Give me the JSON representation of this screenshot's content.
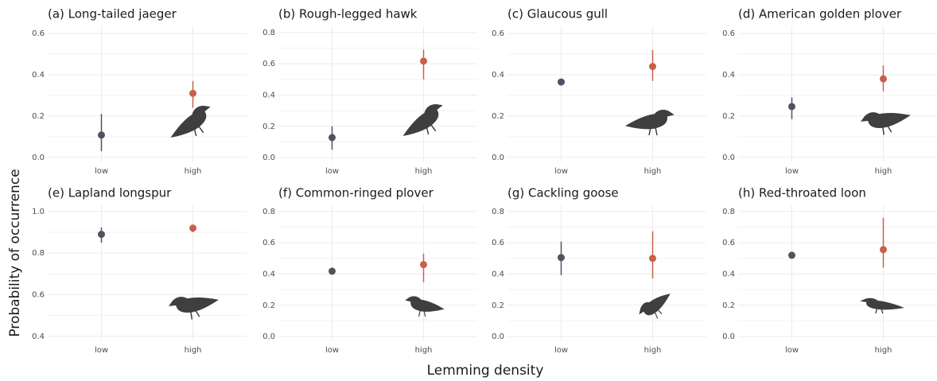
{
  "ylabel": "Probability of occurrence",
  "xlabel": "Lemming density",
  "chart_data": [
    {
      "type": "point",
      "title": "(a) Long-tailed jaeger",
      "categories": [
        "low",
        "high"
      ],
      "values": [
        0.108,
        0.31
      ],
      "lower": [
        0.03,
        0.24
      ],
      "upper": [
        0.21,
        0.37
      ],
      "colors": [
        "#4d5361",
        "#c8604a"
      ],
      "ylim": [
        -0.02,
        0.635
      ],
      "yticks": [
        {
          "value": 0,
          "label": "0.0"
        },
        0.2,
        0.4,
        0.6
      ],
      "grid": true
    },
    {
      "type": "point",
      "title": "(b) Rough-legged hawk",
      "categories": [
        "low",
        "high"
      ],
      "values": [
        0.128,
        0.617
      ],
      "lower": [
        0.05,
        0.5
      ],
      "upper": [
        0.2,
        0.69
      ],
      "colors": [
        "#4d5361",
        "#c8604a"
      ],
      "ylim": [
        -0.025,
        0.84
      ],
      "yticks": [
        {
          "value": 0,
          "label": "0.0"
        },
        0.2,
        0.4,
        0.6,
        0.8
      ],
      "grid": true
    },
    {
      "type": "point",
      "title": "(c) Glaucous gull",
      "categories": [
        "low",
        "high"
      ],
      "values": [
        0.365,
        0.44
      ],
      "lower": [
        0.36,
        0.37
      ],
      "upper": [
        0.37,
        0.52
      ],
      "colors": [
        "#4d5361",
        "#c8604a"
      ],
      "ylim": [
        -0.02,
        0.635
      ],
      "yticks": [
        {
          "value": 0,
          "label": "0.0"
        },
        0.2,
        0.4,
        0.6
      ],
      "grid": true
    },
    {
      "type": "point",
      "title": "(d) American golden plover",
      "categories": [
        "low",
        "high"
      ],
      "values": [
        0.246,
        0.38
      ],
      "lower": [
        0.185,
        0.32
      ],
      "upper": [
        0.29,
        0.445
      ],
      "colors": [
        "#4d5361",
        "#c8604a"
      ],
      "ylim": [
        -0.02,
        0.635
      ],
      "yticks": [
        {
          "value": 0,
          "label": "0.0"
        },
        0.2,
        0.4,
        0.6
      ],
      "grid": true
    },
    {
      "type": "point",
      "title": "(e) Lapland longspur",
      "categories": [
        "low",
        "high"
      ],
      "values": [
        0.89,
        0.92
      ],
      "lower": [
        0.85,
        0.9
      ],
      "upper": [
        0.923,
        0.93
      ],
      "colors": [
        "#4d5361",
        "#c8604a"
      ],
      "ylim": [
        0.38,
        1.03
      ],
      "yticks": [
        0.4,
        0.6,
        0.8,
        {
          "value": 1,
          "label": "1.0"
        }
      ],
      "grid": true
    },
    {
      "type": "point",
      "title": "(f) Common-ringed plover",
      "categories": [
        "low",
        "high"
      ],
      "values": [
        0.418,
        0.46
      ],
      "lower": [
        0.41,
        0.347
      ],
      "upper": [
        0.425,
        0.53
      ],
      "colors": [
        "#4d5361",
        "#c8604a"
      ],
      "ylim": [
        -0.025,
        0.84
      ],
      "yticks": [
        {
          "value": 0,
          "label": "0.0"
        },
        0.2,
        0.4,
        0.6,
        0.8
      ],
      "grid": true
    },
    {
      "type": "point",
      "title": "(g) Cackling goose",
      "categories": [
        "low",
        "high"
      ],
      "values": [
        0.505,
        0.5
      ],
      "lower": [
        0.393,
        0.372
      ],
      "upper": [
        0.607,
        0.673
      ],
      "colors": [
        "#4d5361",
        "#c8604a"
      ],
      "ylim": [
        -0.025,
        0.84
      ],
      "yticks": [
        {
          "value": 0,
          "label": "0.0"
        },
        0.2,
        0.4,
        0.6,
        0.8
      ],
      "grid": true
    },
    {
      "type": "point",
      "title": "(h) Red-throated loon",
      "categories": [
        "low",
        "high"
      ],
      "values": [
        0.52,
        0.556
      ],
      "lower": [
        0.515,
        0.44
      ],
      "upper": [
        0.527,
        0.76
      ],
      "colors": [
        "#4d5361",
        "#c8604a"
      ],
      "ylim": [
        -0.025,
        0.84
      ],
      "yticks": [
        {
          "value": 0,
          "label": "0.0"
        },
        0.2,
        0.4,
        0.6,
        0.8
      ],
      "grid": true
    }
  ]
}
